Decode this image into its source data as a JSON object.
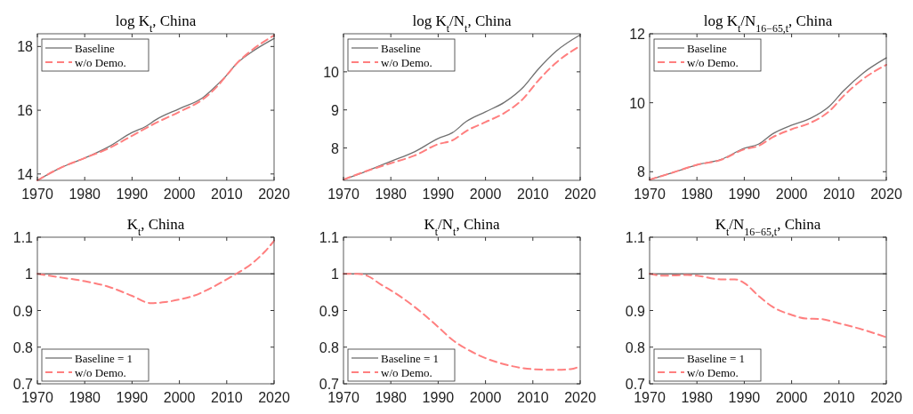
{
  "chart_data": [
    {
      "type": "line",
      "title": "log K$_{t}$, China",
      "xlim": [
        1970,
        2020
      ],
      "xticks": [
        1970,
        1980,
        1990,
        2000,
        2010,
        2020
      ],
      "ylim": [
        13.8,
        18.4
      ],
      "yticks": [
        14,
        16,
        18
      ],
      "grid": false,
      "legend": "top left",
      "series": [
        {
          "name": "Baseline",
          "color": "#707070",
          "line_style": "solid",
          "x": [
            1970,
            1975,
            1980,
            1985,
            1990,
            1993,
            1995,
            2000,
            2005,
            2008,
            2010,
            2012,
            2015,
            2020
          ],
          "values": [
            13.8,
            14.2,
            14.5,
            14.85,
            15.3,
            15.5,
            15.7,
            16.05,
            16.4,
            16.8,
            17.1,
            17.45,
            17.8,
            18.25
          ]
        },
        {
          "name": "w/o Demo.",
          "color": "#ff7f7f",
          "line_style": "dashed",
          "x": [
            1970,
            1975,
            1980,
            1985,
            1990,
            1995,
            2000,
            2005,
            2008,
            2010,
            2012,
            2015,
            2020
          ],
          "values": [
            13.8,
            14.2,
            14.5,
            14.8,
            15.2,
            15.6,
            15.95,
            16.35,
            16.75,
            17.1,
            17.45,
            17.85,
            18.35
          ]
        }
      ]
    },
    {
      "type": "line",
      "title": "log K$_{t}$/N$_{t}$, China",
      "xlim": [
        1970,
        2020
      ],
      "xticks": [
        1970,
        1980,
        1990,
        2000,
        2010,
        2020
      ],
      "ylim": [
        7.15,
        11
      ],
      "yticks": [
        8,
        9,
        10
      ],
      "grid": false,
      "legend": "top left",
      "series": [
        {
          "name": "Baseline",
          "color": "#707070",
          "line_style": "solid",
          "x": [
            1970,
            1975,
            1980,
            1985,
            1990,
            1993,
            1996,
            2000,
            2004,
            2008,
            2011,
            2015,
            2020
          ],
          "values": [
            7.17,
            7.4,
            7.65,
            7.9,
            8.25,
            8.4,
            8.7,
            8.95,
            9.2,
            9.6,
            10.05,
            10.55,
            10.97
          ]
        },
        {
          "name": "w/o Demo.",
          "color": "#ff7f7f",
          "line_style": "dashed",
          "x": [
            1970,
            1975,
            1980,
            1985,
            1990,
            1993,
            1996,
            2000,
            2004,
            2008,
            2011,
            2015,
            2020
          ],
          "values": [
            7.17,
            7.4,
            7.6,
            7.8,
            8.1,
            8.2,
            8.45,
            8.68,
            8.92,
            9.3,
            9.75,
            10.25,
            10.68
          ]
        }
      ]
    },
    {
      "type": "line",
      "title": "log K$_{t}$/N$_{16−65,t}$, China",
      "xlim": [
        1970,
        2020
      ],
      "xticks": [
        1970,
        1980,
        1990,
        2000,
        2010,
        2020
      ],
      "ylim": [
        7.75,
        12
      ],
      "yticks": [
        8,
        10,
        12
      ],
      "grid": false,
      "legend": "top left",
      "series": [
        {
          "name": "Baseline",
          "color": "#707070",
          "line_style": "solid",
          "x": [
            1970,
            1975,
            1980,
            1985,
            1990,
            1993,
            1996,
            2000,
            2004,
            2008,
            2011,
            2015,
            2020
          ],
          "values": [
            7.77,
            7.98,
            8.2,
            8.35,
            8.68,
            8.8,
            9.1,
            9.35,
            9.55,
            9.9,
            10.35,
            10.85,
            11.3
          ]
        },
        {
          "name": "w/o Demo.",
          "color": "#ff7f7f",
          "line_style": "dashed",
          "x": [
            1970,
            1975,
            1980,
            1985,
            1990,
            1993,
            1996,
            2000,
            2004,
            2008,
            2011,
            2015,
            2020
          ],
          "values": [
            7.77,
            7.98,
            8.2,
            8.34,
            8.65,
            8.75,
            9.0,
            9.23,
            9.42,
            9.76,
            10.2,
            10.68,
            11.1
          ]
        }
      ]
    },
    {
      "type": "line",
      "title": "K$_{t}$, China",
      "xlim": [
        1970,
        2020
      ],
      "xticks": [
        1970,
        1980,
        1990,
        2000,
        2010,
        2020
      ],
      "ylim": [
        0.7,
        1.1
      ],
      "yticks": [
        0.7,
        0.8,
        0.9,
        1,
        1.1
      ],
      "grid": false,
      "legend": "bottom left",
      "series": [
        {
          "name": "Baseline = 1",
          "color": "#707070",
          "line_style": "solid",
          "x": [
            1970,
            2020
          ],
          "values": [
            1,
            1
          ]
        },
        {
          "name": "w/o Demo.",
          "color": "#ff7f7f",
          "line_style": "dashed",
          "x": [
            1970,
            1975,
            1980,
            1985,
            1990,
            1994,
            1997,
            2000,
            2003,
            2006,
            2010,
            2012,
            2015,
            2018,
            2020
          ],
          "values": [
            1.0,
            0.99,
            0.98,
            0.965,
            0.94,
            0.92,
            0.923,
            0.93,
            0.94,
            0.957,
            0.985,
            1.0,
            1.025,
            1.06,
            1.09
          ]
        }
      ]
    },
    {
      "type": "line",
      "title": "K$_{t}$/N$_{t}$, China",
      "xlim": [
        1970,
        2020
      ],
      "xticks": [
        1970,
        1980,
        1990,
        2000,
        2010,
        2020
      ],
      "ylim": [
        0.7,
        1.1
      ],
      "yticks": [
        0.7,
        0.8,
        0.9,
        1,
        1.1
      ],
      "grid": false,
      "legend": "bottom left",
      "series": [
        {
          "name": "Baseline = 1",
          "color": "#707070",
          "line_style": "solid",
          "x": [
            1970,
            2020
          ],
          "values": [
            1,
            1
          ]
        },
        {
          "name": "w/o Demo.",
          "color": "#ff7f7f",
          "line_style": "dashed",
          "x": [
            1970,
            1973,
            1975,
            1978,
            1980,
            1985,
            1990,
            1993,
            1996,
            2000,
            2005,
            2010,
            2015,
            2018,
            2020
          ],
          "values": [
            1.0,
            1.0,
            0.995,
            0.97,
            0.955,
            0.91,
            0.855,
            0.82,
            0.795,
            0.77,
            0.75,
            0.74,
            0.738,
            0.74,
            0.748
          ]
        }
      ]
    },
    {
      "type": "line",
      "title": "K$_{t}$/N$_{16−65,t}$, China",
      "xlim": [
        1970,
        2020
      ],
      "xticks": [
        1970,
        1980,
        1990,
        2000,
        2010,
        2020
      ],
      "ylim": [
        0.7,
        1.1
      ],
      "yticks": [
        0.7,
        0.8,
        0.9,
        1,
        1.1
      ],
      "grid": false,
      "legend": "bottom left",
      "series": [
        {
          "name": "Baseline = 1",
          "color": "#707070",
          "line_style": "solid",
          "x": [
            1970,
            2020
          ],
          "values": [
            1,
            1
          ]
        },
        {
          "name": "w/o Demo.",
          "color": "#ff7f7f",
          "line_style": "dashed",
          "x": [
            1970,
            1973,
            1978,
            1980,
            1985,
            1988,
            1990,
            1993,
            1996,
            2000,
            2003,
            2006,
            2010,
            2015,
            2020
          ],
          "values": [
            1.0,
            0.995,
            0.997,
            0.995,
            0.985,
            0.985,
            0.975,
            0.94,
            0.91,
            0.888,
            0.878,
            0.877,
            0.865,
            0.848,
            0.827
          ]
        }
      ]
    }
  ]
}
